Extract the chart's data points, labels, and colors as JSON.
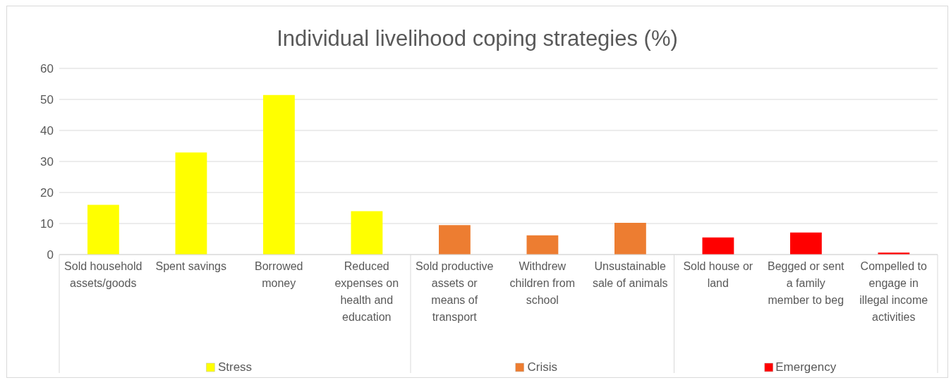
{
  "chart_data": {
    "type": "bar",
    "title": "Individual livelihood coping strategies (%)",
    "categories": [
      "Sold household assets/goods",
      "Spent savings",
      "Borrowed money",
      "Reduced expenses on health and education",
      "Sold productive assets or means of transport",
      "Withdrew children from school",
      "Unsustainable sale of animals",
      "Sold house or land",
      "Begged or sent a family member to beg",
      "Compelled to engage in illegal income activities"
    ],
    "series": [
      {
        "name": "Stress",
        "color": "#ffff00",
        "values": [
          16,
          32.9,
          51.4,
          14,
          null,
          null,
          null,
          null,
          null,
          null
        ]
      },
      {
        "name": "Crisis",
        "color": "#ed7d31",
        "values": [
          null,
          null,
          null,
          null,
          9.5,
          6.2,
          10.2,
          null,
          null,
          null
        ]
      },
      {
        "name": "Emergency",
        "color": "#ff0000",
        "values": [
          null,
          null,
          null,
          null,
          null,
          null,
          null,
          5.5,
          7.1,
          0.6
        ]
      }
    ],
    "ylim": [
      0,
      60
    ],
    "yticks": [
      0,
      10,
      20,
      30,
      40,
      50,
      60
    ],
    "grid": "y",
    "legend": "bottom"
  }
}
